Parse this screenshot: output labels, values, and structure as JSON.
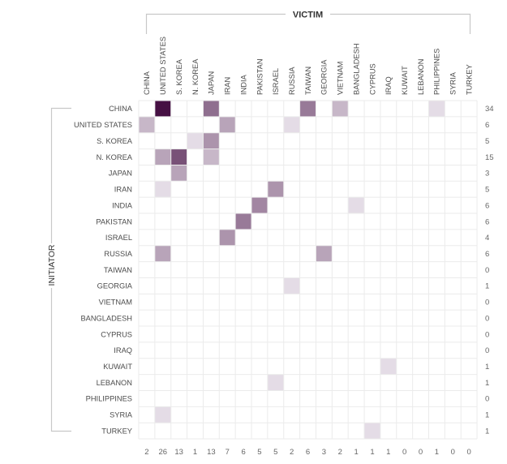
{
  "chart_data": {
    "type": "heatmap",
    "title": "",
    "xlabel": "VICTIM",
    "ylabel": "INITIATOR",
    "columns": [
      "CHINA",
      "UNITED STATES",
      "S. KOREA",
      "N. KOREA",
      "JAPAN",
      "IRAN",
      "INDIA",
      "PAKISTAN",
      "ISRAEL",
      "RUSSIA",
      "TAIWAN",
      "GEORGIA",
      "VIETNAM",
      "BANGLADESH",
      "CYPRUS",
      "IRAQ",
      "KUWAIT",
      "LEBANON",
      "PHILIPPINES",
      "SYRIA",
      "TURKEY"
    ],
    "rows": [
      "CHINA",
      "UNITED STATES",
      "S. KOREA",
      "N. KOREA",
      "JAPAN",
      "IRAN",
      "INDIA",
      "PAKISTAN",
      "ISRAEL",
      "RUSSIA",
      "TAIWAN",
      "GEORGIA",
      "VIETNAM",
      "BANGLADESH",
      "CYPRUS",
      "IRAQ",
      "KUWAIT",
      "LEBANON",
      "PHILIPPINES",
      "SYRIA",
      "TURKEY"
    ],
    "cells": [
      {
        "row": "CHINA",
        "col": "UNITED STATES",
        "value": 18
      },
      {
        "row": "CHINA",
        "col": "JAPAN",
        "value": 7
      },
      {
        "row": "CHINA",
        "col": "TAIWAN",
        "value": 6
      },
      {
        "row": "CHINA",
        "col": "VIETNAM",
        "value": 2
      },
      {
        "row": "CHINA",
        "col": "PHILIPPINES",
        "value": 1
      },
      {
        "row": "UNITED STATES",
        "col": "CHINA",
        "value": 2
      },
      {
        "row": "UNITED STATES",
        "col": "IRAN",
        "value": 3
      },
      {
        "row": "UNITED STATES",
        "col": "RUSSIA",
        "value": 1
      },
      {
        "row": "S. KOREA",
        "col": "N. KOREA",
        "value": 1
      },
      {
        "row": "S. KOREA",
        "col": "JAPAN",
        "value": 4
      },
      {
        "row": "N. KOREA",
        "col": "UNITED STATES",
        "value": 3
      },
      {
        "row": "N. KOREA",
        "col": "S. KOREA",
        "value": 10
      },
      {
        "row": "N. KOREA",
        "col": "JAPAN",
        "value": 2
      },
      {
        "row": "JAPAN",
        "col": "S. KOREA",
        "value": 3
      },
      {
        "row": "IRAN",
        "col": "UNITED STATES",
        "value": 1
      },
      {
        "row": "IRAN",
        "col": "ISRAEL",
        "value": 4
      },
      {
        "row": "INDIA",
        "col": "PAKISTAN",
        "value": 5
      },
      {
        "row": "INDIA",
        "col": "BANGLADESH",
        "value": 1
      },
      {
        "row": "PAKISTAN",
        "col": "INDIA",
        "value": 6
      },
      {
        "row": "ISRAEL",
        "col": "IRAN",
        "value": 4
      },
      {
        "row": "RUSSIA",
        "col": "UNITED STATES",
        "value": 3
      },
      {
        "row": "RUSSIA",
        "col": "GEORGIA",
        "value": 3
      },
      {
        "row": "GEORGIA",
        "col": "RUSSIA",
        "value": 1
      },
      {
        "row": "KUWAIT",
        "col": "IRAQ",
        "value": 1
      },
      {
        "row": "LEBANON",
        "col": "ISRAEL",
        "value": 1
      },
      {
        "row": "SYRIA",
        "col": "UNITED STATES",
        "value": 1
      },
      {
        "row": "TURKEY",
        "col": "CYPRUS",
        "value": 1
      }
    ],
    "row_totals": [
      "34",
      "6",
      "5",
      "15",
      "3",
      "5",
      "6",
      "6",
      "4",
      "6",
      "0",
      "1",
      "0",
      "0",
      "0",
      "0",
      "1",
      "1",
      "0",
      "1",
      "1"
    ],
    "column_totals": [
      "2",
      "26",
      "13",
      "1",
      "13",
      "7",
      "6",
      "5",
      "5",
      "2",
      "6",
      "3",
      "2",
      "1",
      "1",
      "1",
      "0",
      "0",
      "1",
      "0",
      "0"
    ],
    "value_range": [
      0,
      18
    ],
    "grid": true,
    "color_low": "#e4dce6",
    "color_high": "#461043"
  }
}
